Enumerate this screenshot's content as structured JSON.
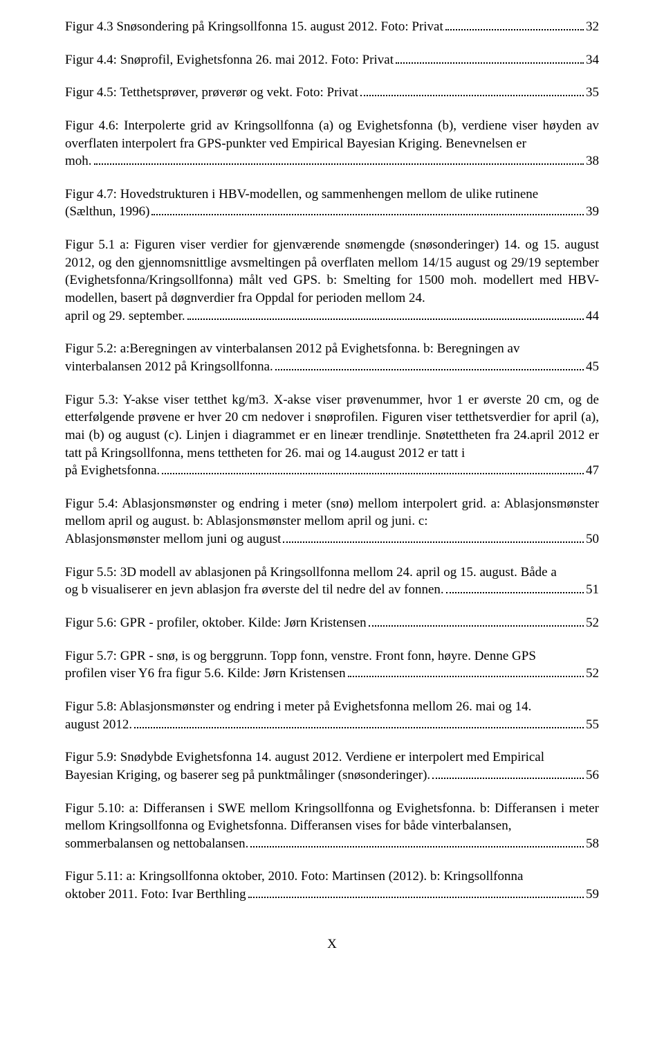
{
  "entries": [
    {
      "prefix": "",
      "lastLine": "Figur 4.3 Snøsondering på Kringsollfonna 15. august 2012. Foto: Privat",
      "page": "32"
    },
    {
      "prefix": "",
      "lastLine": "Figur 4.4: Snøprofil, Evighetsfonna 26. mai 2012. Foto: Privat",
      "page": "34"
    },
    {
      "prefix": "",
      "lastLine": "Figur 4.5: Tetthetsprøver, prøverør og vekt. Foto: Privat",
      "page": "35"
    },
    {
      "prefix": "Figur 4.6: Interpolerte grid av Kringsollfonna (a) og Evighetsfonna (b), verdiene viser høyden av overflaten interpolert fra GPS-punkter ved Empirical Bayesian Kriging. Benevnelsen er ",
      "lastLine": "moh.",
      "page": "38"
    },
    {
      "prefix": "Figur 4.7: Hovedstrukturen i HBV-modellen, og sammenhengen mellom de ulike rutinene ",
      "lastLine": "(Sælthun, 1996)",
      "page": "39"
    },
    {
      "prefix": "Figur 5.1 a: Figuren viser verdier for gjenværende snømengde (snøsonderinger) 14. og 15. august 2012, og den gjennomsnittlige avsmeltingen på overflaten mellom 14/15 august og 29/19 september (Evighetsfonna/Kringsollfonna) målt ved GPS.  b: Smelting for 1500 moh. modellert med HBV-modellen, basert på døgnverdier fra Oppdal for perioden mellom 24. ",
      "lastLine": "april og 29. september.",
      "page": "44"
    },
    {
      "prefix": "Figur 5.2: a:Beregningen av vinterbalansen 2012 på Evighetsfonna. b: Beregningen av ",
      "lastLine": "vinterbalansen 2012 på Kringsollfonna.",
      "page": "45"
    },
    {
      "prefix": "Figur 5.3: Y-akse viser tetthet kg/m3. X-akse viser prøvenummer, hvor 1 er øverste 20 cm, og de etterfølgende prøvene er hver 20 cm nedover i snøprofilen. Figuren viser tetthetsverdier for april (a), mai (b) og august (c). Linjen i diagrammet er en lineær trendlinje.  Snøtettheten fra 24.april 2012 er tatt på Kringsollfonna, mens tettheten for 26. mai og 14.august 2012 er tatt i ",
      "lastLine": "på Evighetsfonna.",
      "page": "47"
    },
    {
      "prefix": "Figur 5.4: Ablasjonsmønster og endring i meter (snø) mellom interpolert grid. a: Ablasjonsmønster mellom april og august.  b: Ablasjonsmønster mellom april og juni. c: ",
      "lastLine": "Ablasjonsmønster mellom juni og august",
      "page": "50"
    },
    {
      "prefix": "Figur 5.5: 3D modell av ablasjonen på Kringsollfonna mellom 24. april og 15. august. Både a ",
      "lastLine": "og b visualiserer en jevn ablasjon fra øverste del til nedre del av fonnen.",
      "page": "51"
    },
    {
      "prefix": "",
      "lastLine": "Figur 5.6: GPR - profiler, oktober. Kilde: Jørn Kristensen",
      "page": "52"
    },
    {
      "prefix": "Figur 5.7: GPR - snø, is og berggrunn. Topp fonn, venstre. Front fonn, høyre. Denne GPS ",
      "lastLine": "profilen viser Y6 fra figur 5.6. Kilde: Jørn Kristensen",
      "page": "52"
    },
    {
      "prefix": "Figur 5.8: Ablasjonsmønster og endring i meter på Evighetsfonna mellom 26. mai og 14. ",
      "lastLine": "august 2012.",
      "page": "55"
    },
    {
      "prefix": "Figur 5.9: Snødybde Evighetsfonna 14. august 2012. Verdiene er interpolert med Empirical ",
      "lastLine": "Bayesian Kriging, og baserer seg på punktmålinger (snøsonderinger).",
      "page": "56"
    },
    {
      "prefix": "Figur 5.10: a: Differansen i SWE mellom Kringsollfonna og Evighetsfonna. b: Differansen i meter mellom Kringsollfonna og Evighetsfonna. Differansen vises for både vinterbalansen, ",
      "lastLine": "sommerbalansen og nettobalansen.",
      "page": "58"
    },
    {
      "prefix": "Figur 5.11: a: Kringsollfonna oktober, 2010. Foto: Martinsen (2012). b: Kringsollfonna ",
      "lastLine": "oktober 2011. Foto: Ivar Berthling",
      "page": "59"
    }
  ],
  "pageNumber": "X"
}
